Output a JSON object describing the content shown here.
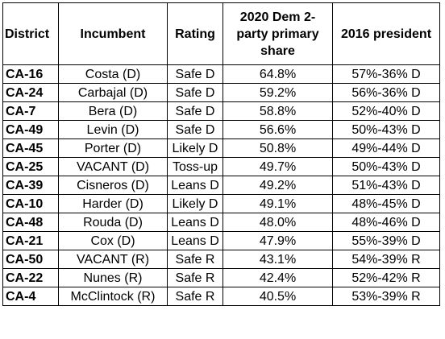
{
  "table": {
    "headers": {
      "district": "District",
      "incumbent": "Incumbent",
      "rating": "Rating",
      "primary_share": "2020 Dem 2-party primary share",
      "president_2016": "2016 president"
    },
    "rows": [
      {
        "district": "CA-16",
        "incumbent": "Costa (D)",
        "rating": "Safe D",
        "primary_share": "64.8%",
        "president_2016": "57%-36% D"
      },
      {
        "district": "CA-24",
        "incumbent": "Carbajal (D)",
        "rating": "Safe D",
        "primary_share": "59.2%",
        "president_2016": "56%-36% D"
      },
      {
        "district": "CA-7",
        "incumbent": "Bera (D)",
        "rating": "Safe D",
        "primary_share": "58.8%",
        "president_2016": "52%-40% D"
      },
      {
        "district": "CA-49",
        "incumbent": "Levin (D)",
        "rating": "Safe D",
        "primary_share": "56.6%",
        "president_2016": "50%-43% D"
      },
      {
        "district": "CA-45",
        "incumbent": "Porter (D)",
        "rating": "Likely D",
        "primary_share": "50.8%",
        "president_2016": "49%-44% D"
      },
      {
        "district": "CA-25",
        "incumbent": "VACANT (D)",
        "rating": "Toss-up",
        "primary_share": "49.7%",
        "president_2016": "50%-43% D"
      },
      {
        "district": "CA-39",
        "incumbent": "Cisneros (D)",
        "rating": "Leans D",
        "primary_share": "49.2%",
        "president_2016": "51%-43% D"
      },
      {
        "district": "CA-10",
        "incumbent": "Harder (D)",
        "rating": "Likely D",
        "primary_share": "49.1%",
        "president_2016": "48%-45% D"
      },
      {
        "district": "CA-48",
        "incumbent": "Rouda (D)",
        "rating": "Leans D",
        "primary_share": "48.0%",
        "president_2016": "48%-46% D"
      },
      {
        "district": "CA-21",
        "incumbent": "Cox (D)",
        "rating": "Leans D",
        "primary_share": "47.9%",
        "president_2016": "55%-39% D"
      },
      {
        "district": "CA-50",
        "incumbent": "VACANT (R)",
        "rating": "Safe R",
        "primary_share": "43.1%",
        "president_2016": "54%-39% R"
      },
      {
        "district": "CA-22",
        "incumbent": "Nunes (R)",
        "rating": "Safe R",
        "primary_share": "42.4%",
        "president_2016": "52%-42% R"
      },
      {
        "district": "CA-4",
        "incumbent": "McClintock (R)",
        "rating": "Safe R",
        "primary_share": "40.5%",
        "president_2016": "53%-39% R"
      }
    ]
  }
}
